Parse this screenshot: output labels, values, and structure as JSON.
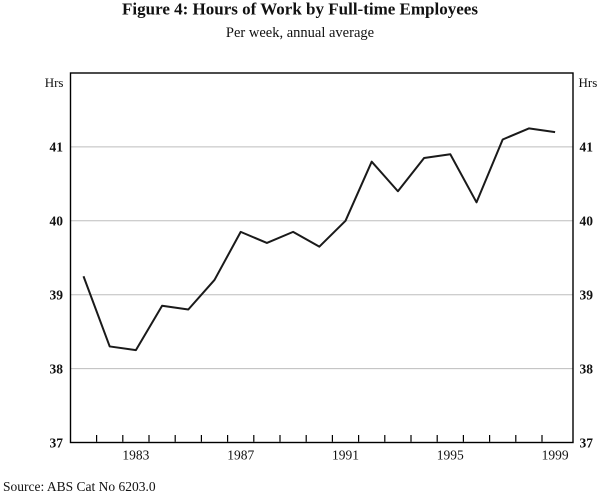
{
  "figure": {
    "title": "Figure 4: Hours of Work by Full-time Employees",
    "subtitle": "Per week, annual average",
    "unit_left": "Hrs",
    "unit_right": "Hrs",
    "source": "Source: ABS Cat No 6203.0"
  },
  "chart_data": {
    "type": "line",
    "title": "Figure 4: Hours of Work by Full-time Employees",
    "subtitle": "Per week, annual average",
    "ylabel": "Hrs",
    "ylabel_right": "Hrs",
    "source": "Source: ABS Cat No 6203.0",
    "x": [
      1981,
      1982,
      1983,
      1984,
      1985,
      1986,
      1987,
      1988,
      1989,
      1990,
      1991,
      1992,
      1993,
      1994,
      1995,
      1996,
      1997,
      1998,
      1999
    ],
    "values": [
      39.25,
      38.3,
      38.25,
      38.85,
      38.8,
      39.2,
      39.85,
      39.7,
      39.85,
      39.65,
      40.0,
      40.8,
      40.4,
      40.85,
      40.9,
      40.25,
      41.1,
      41.25,
      41.2
    ],
    "ylim": [
      37,
      42
    ],
    "yticks": [
      37,
      38,
      39,
      40,
      41
    ],
    "xtick_years": [
      1983,
      1987,
      1991,
      1995,
      1999
    ],
    "grid": "horizontal",
    "legend": "none",
    "colors": {
      "line": "#1a1a1a",
      "grid": "#bdbdbd",
      "axis": "#000000",
      "text": "#111111"
    }
  }
}
